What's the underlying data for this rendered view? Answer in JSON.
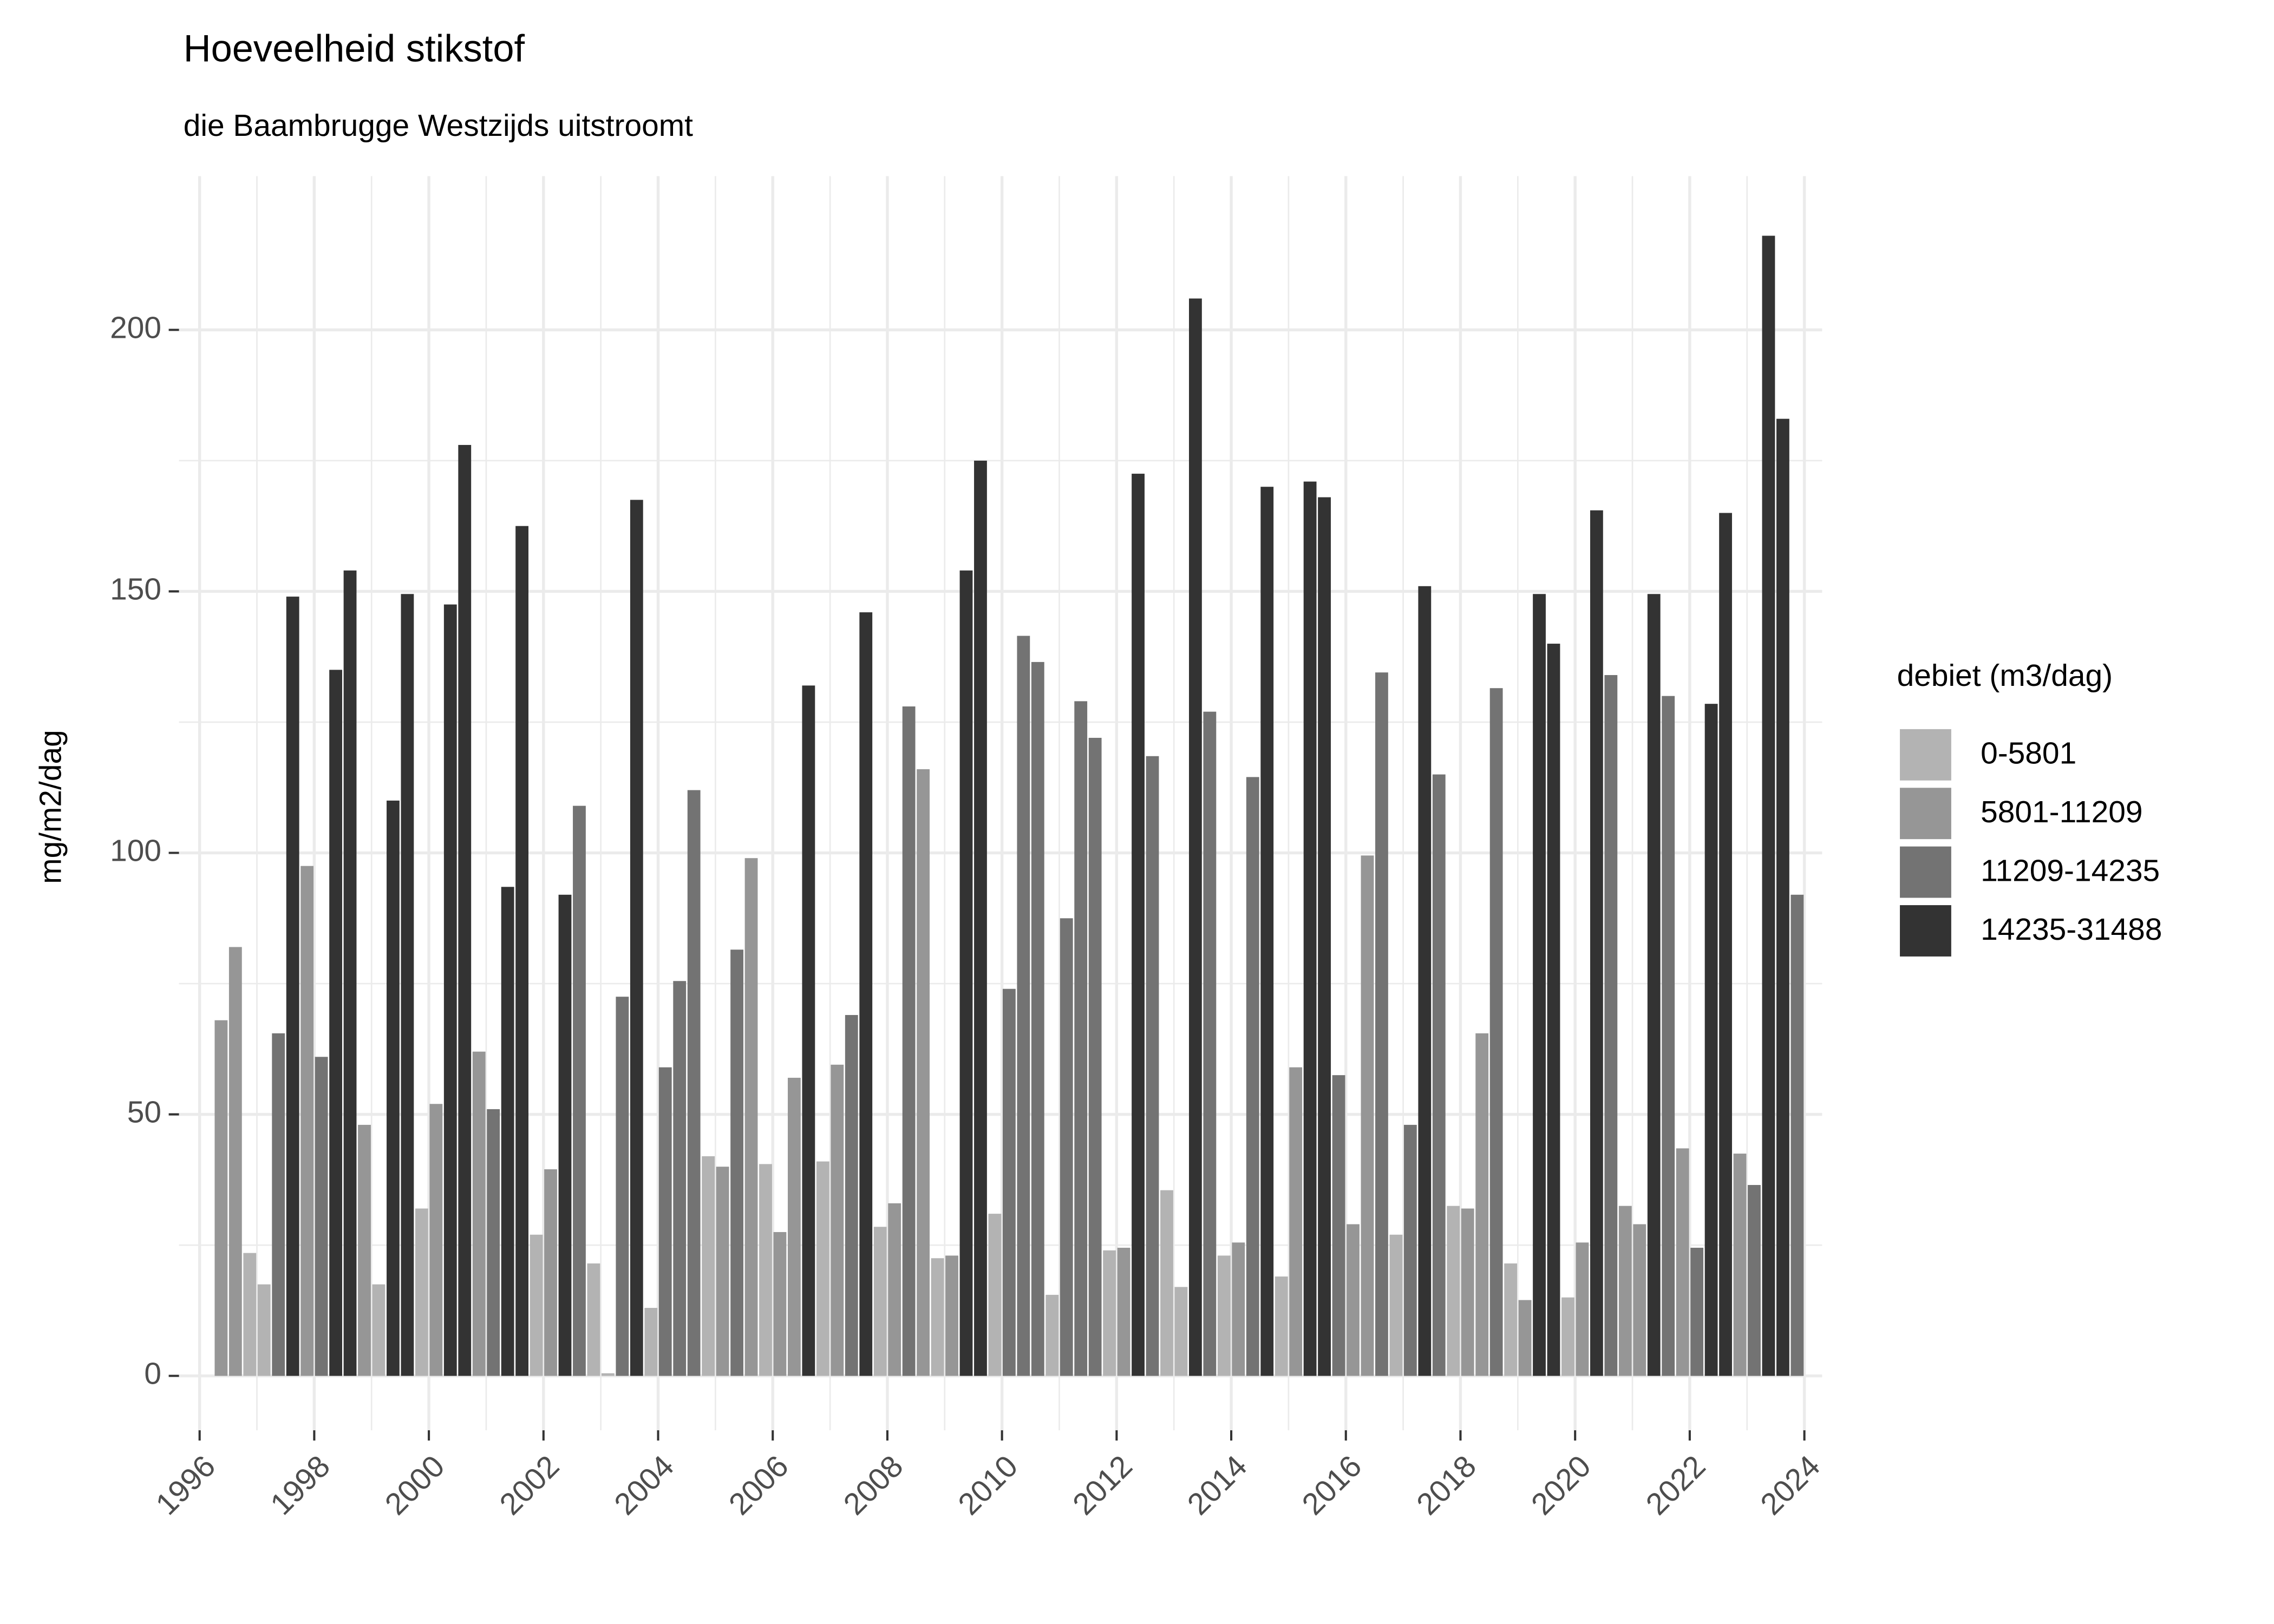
{
  "chart_data": {
    "type": "bar",
    "title": "Hoeveelheid stikstof",
    "subtitle": "die Baambrugge Westzijds uitstroomt",
    "y_label": "mg/m2/dag",
    "legend_title": "debiet (m3/dag)",
    "legend_position": "right",
    "grid": true,
    "xlim": [
      1995.64,
      2024.31
    ],
    "ylim": [
      -10.4,
      229.4
    ],
    "xticks": [
      1996,
      1998,
      2000,
      2002,
      2004,
      2006,
      2008,
      2010,
      2012,
      2014,
      2016,
      2018,
      2020,
      2022,
      2024
    ],
    "yticks": [
      0,
      50,
      100,
      150,
      200
    ],
    "series": [
      {
        "name": "0-5801",
        "color": "#b3b3b3",
        "x": [
          1996.875,
          1997.125,
          1999.125,
          1999.875,
          2001.875,
          2002.875,
          2003.125,
          2003.875,
          2004.875,
          2005.875,
          2006.875,
          2007.875,
          2008.875,
          2009.875,
          2010.875,
          2011.875,
          2012.875,
          2013.125,
          2013.875,
          2014.875,
          2016.875,
          2017.875,
          2018.875,
          2019.875
        ],
        "values": [
          23.5,
          17.5,
          17.5,
          32,
          27,
          21.5,
          0.5,
          13,
          42,
          40.5,
          41,
          28.5,
          22.5,
          31,
          15.5,
          24,
          35.5,
          17,
          23,
          19,
          27,
          32.5,
          21.5,
          15
        ]
      },
      {
        "name": "5801-11209",
        "color": "#969696",
        "x": [
          1996.375,
          1996.625,
          1997.875,
          1998.875,
          2000.125,
          2000.875,
          2002.125,
          2005.125,
          2005.625,
          2006.125,
          2006.375,
          2007.125,
          2008.125,
          2008.625,
          2009.125,
          2012.125,
          2014.125,
          2015.125,
          2016.125,
          2016.375,
          2018.125,
          2018.375,
          2019.125,
          2020.125,
          2020.875,
          2021.125,
          2021.875,
          2022.875
        ],
        "values": [
          68,
          82,
          97.5,
          48,
          52,
          62,
          39.5,
          40,
          99,
          27.5,
          57,
          59.5,
          33,
          116,
          23,
          24.5,
          25.5,
          59,
          29,
          99.5,
          32,
          65.5,
          14.5,
          25.5,
          32.5,
          29,
          43.5,
          42.5
        ]
      },
      {
        "name": "11209-14235",
        "color": "#737373",
        "x": [
          1997.375,
          1998.125,
          2001.125,
          2002.625,
          2003.375,
          2004.125,
          2004.375,
          2004.625,
          2005.375,
          2007.375,
          2008.375,
          2010.125,
          2010.375,
          2010.625,
          2011.125,
          2011.375,
          2011.625,
          2012.625,
          2013.625,
          2014.375,
          2015.875,
          2016.625,
          2017.125,
          2017.625,
          2018.625,
          2020.625,
          2021.625,
          2022.125,
          2023.125,
          2023.875
        ],
        "values": [
          65.5,
          61,
          51,
          109,
          72.5,
          59,
          75.5,
          112,
          81.5,
          69,
          128,
          74,
          141.5,
          136.5,
          87.5,
          129,
          122,
          118.5,
          127,
          114.5,
          57.5,
          134.5,
          48,
          115,
          131.5,
          134,
          130,
          24.5,
          36.5,
          92
        ]
      },
      {
        "name": "14235-31488",
        "color": "#333333",
        "x": [
          1997.625,
          1998.375,
          1998.625,
          1999.375,
          1999.625,
          2000.375,
          2000.625,
          2001.375,
          2001.625,
          2002.375,
          2003.625,
          2006.625,
          2007.625,
          2009.375,
          2009.625,
          2012.375,
          2013.375,
          2014.625,
          2015.375,
          2015.625,
          2017.375,
          2019.375,
          2019.625,
          2020.375,
          2021.375,
          2022.375,
          2022.625,
          2023.375,
          2023.625
        ],
        "values": [
          149,
          135,
          154,
          110,
          149.5,
          147.5,
          178,
          93.5,
          162.5,
          92,
          167.5,
          132,
          146,
          154,
          175,
          172.5,
          206,
          170,
          171,
          168,
          151,
          149.5,
          140,
          165.5,
          149.5,
          128.5,
          165,
          218,
          183
        ]
      }
    ]
  }
}
